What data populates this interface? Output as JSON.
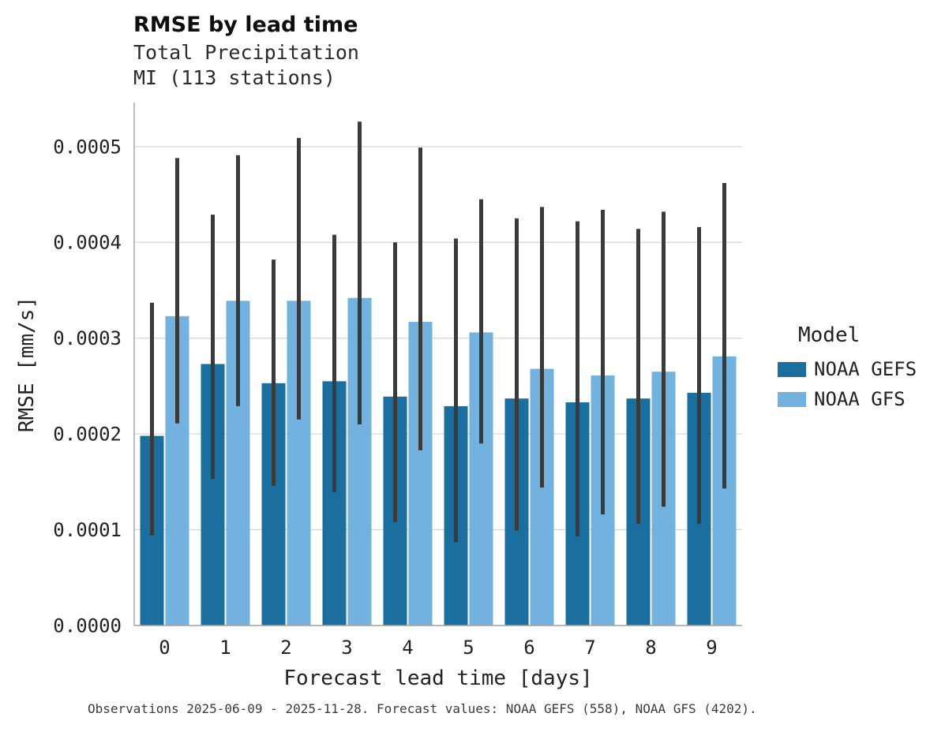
{
  "header": {
    "title": "RMSE by lead time",
    "subtitle_line1": "Total Precipitation",
    "subtitle_line2": "MI (113 stations)"
  },
  "caption": "Observations 2025-06-09 - 2025-11-28. Forecast values: NOAA GEFS (558), NOAA GFS (4202).",
  "legend": {
    "title": "Model",
    "entries": [
      {
        "label": "NOAA GEFS",
        "color": "#1a6f9e"
      },
      {
        "label": "NOAA GFS",
        "color": "#73b2de"
      }
    ]
  },
  "chart_data": {
    "type": "bar",
    "title": "RMSE by lead time",
    "subtitle": "Total Precipitation — MI (113 stations)",
    "xlabel": "Forecast lead time [days]",
    "ylabel": "RMSE [mm/s]",
    "categories": [
      "0",
      "1",
      "2",
      "3",
      "4",
      "5",
      "6",
      "7",
      "8",
      "9"
    ],
    "ylim": [
      0,
      0.000546
    ],
    "yticks": [
      0.0,
      0.0001,
      0.0002,
      0.0003,
      0.0004,
      0.0005
    ],
    "grid": true,
    "legend_position": "right",
    "errorbar_color": "#3a3a3a",
    "background": "#ffffff",
    "gridline_color": "#d8d8d8",
    "spine_color": "#a3a3a3",
    "series": [
      {
        "name": "NOAA GEFS",
        "color": "#1a6f9e",
        "values": [
          0.000198,
          0.000273,
          0.000253,
          0.000255,
          0.000239,
          0.000229,
          0.000237,
          0.000233,
          0.000237,
          0.000243
        ],
        "ci_low": [
          9.4e-05,
          0.000153,
          0.000146,
          0.000139,
          0.000108,
          8.7e-05,
          9.9e-05,
          9.3e-05,
          0.000106,
          0.000106
        ],
        "ci_high": [
          0.000337,
          0.000429,
          0.000382,
          0.000408,
          0.0004,
          0.000404,
          0.000425,
          0.000422,
          0.000414,
          0.000416
        ]
      },
      {
        "name": "NOAA GFS",
        "color": "#73b2de",
        "values": [
          0.000323,
          0.000339,
          0.000339,
          0.000342,
          0.000317,
          0.000306,
          0.000268,
          0.000261,
          0.000265,
          0.000281
        ],
        "ci_low": [
          0.000211,
          0.000229,
          0.000215,
          0.00021,
          0.000183,
          0.00019,
          0.000144,
          0.000116,
          0.000124,
          0.000143
        ],
        "ci_high": [
          0.000488,
          0.000491,
          0.000509,
          0.000526,
          0.000499,
          0.000445,
          0.000437,
          0.000434,
          0.000432,
          0.000462
        ]
      }
    ]
  }
}
